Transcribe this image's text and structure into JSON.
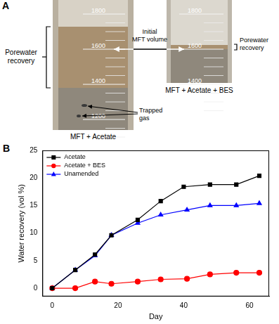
{
  "panel_a": {
    "label": "A",
    "center_label": "Initial MFT volume",
    "cylinders": [
      {
        "caption": "MFT + Acetate",
        "graduations": [
          1800,
          1600,
          1400,
          1200
        ],
        "annotations": [
          "Porewater recovery",
          "Trapped gas"
        ]
      },
      {
        "caption": "MFT + Acetate + BES",
        "graduations": [
          1800,
          1600,
          1400
        ],
        "annotations": [
          "Porewater recovery"
        ]
      }
    ]
  },
  "panel_b": {
    "label": "B"
  },
  "chart_data": {
    "type": "line",
    "x_label": "Day",
    "y_label": "Water recovery (vol %)",
    "xlim": [
      -3,
      66
    ],
    "xticks": [
      0,
      20,
      40,
      60
    ],
    "ylim": [
      -1.5,
      25
    ],
    "yticks": [
      0,
      5,
      10,
      15,
      20,
      25
    ],
    "grid": false,
    "legend": "top-left",
    "series": [
      {
        "name": "Acetate",
        "color": "#000000",
        "marker": "square",
        "x": [
          0,
          7,
          13,
          18,
          26,
          33,
          40,
          48,
          56,
          63
        ],
        "values": [
          0,
          3.3,
          6.1,
          9.6,
          12.4,
          15.8,
          18.4,
          18.8,
          18.8,
          20.4
        ]
      },
      {
        "name": "Acetate + BES",
        "color": "#ff0000",
        "marker": "circle",
        "x": [
          0,
          7,
          13,
          18,
          26,
          33,
          41,
          48,
          56,
          63
        ],
        "values": [
          0,
          0,
          1.2,
          0.8,
          1.2,
          1.6,
          1.7,
          2.5,
          2.8,
          2.8
        ]
      },
      {
        "name": "Unamended",
        "color": "#0000ff",
        "marker": "triangle",
        "x": [
          0,
          7,
          13,
          18,
          26,
          33,
          41,
          48,
          56,
          63
        ],
        "values": [
          0,
          3.3,
          5.9,
          9.6,
          11.8,
          13.3,
          14.2,
          15.0,
          15.0,
          15.4
        ]
      }
    ]
  }
}
